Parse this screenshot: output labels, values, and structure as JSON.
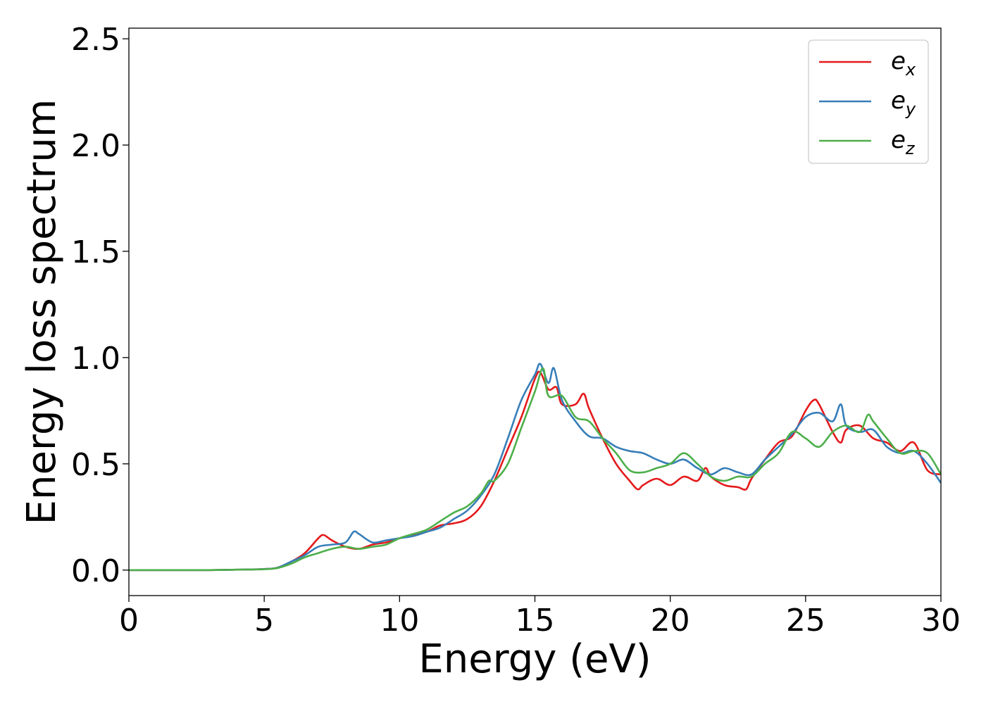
{
  "chart_data": {
    "type": "line",
    "xlabel": "Energy (eV)",
    "ylabel": "Energy loss spectrum",
    "xlim": [
      0,
      30
    ],
    "ylim": [
      -0.12,
      2.55
    ],
    "xticks": [
      0,
      5,
      10,
      15,
      20,
      25,
      30
    ],
    "yticks": [
      0.0,
      0.5,
      1.0,
      1.5,
      2.0,
      2.5
    ],
    "xtick_labels": [
      "0",
      "5",
      "10",
      "15",
      "20",
      "25",
      "30"
    ],
    "ytick_labels": [
      "0.0",
      "0.5",
      "1.0",
      "1.5",
      "2.0",
      "2.5"
    ],
    "grid": false,
    "legend_position": "top-right",
    "series": [
      {
        "name": "e_x",
        "label_base": "e",
        "label_sub": "x",
        "color": "#e41a1c",
        "x": [
          0,
          1,
          2,
          3,
          4,
          5,
          5.5,
          6,
          6.5,
          7,
          7.2,
          7.5,
          8,
          8.5,
          9,
          9.5,
          10,
          10.5,
          11,
          11.5,
          12,
          12.5,
          13,
          13.5,
          14,
          14.5,
          15,
          15.2,
          15.5,
          15.8,
          16,
          16.5,
          16.8,
          17,
          17.5,
          18,
          18.5,
          18.8,
          19,
          19.5,
          20,
          20.5,
          21,
          21.3,
          21.5,
          22,
          22.5,
          22.8,
          23,
          23.5,
          24,
          24.5,
          25,
          25.3,
          25.5,
          26,
          26.3,
          26.5,
          27,
          27.5,
          28,
          28.5,
          29,
          29.5,
          30
        ],
        "y": [
          0,
          0,
          0,
          0,
          0.002,
          0.005,
          0.012,
          0.04,
          0.08,
          0.15,
          0.165,
          0.14,
          0.11,
          0.1,
          0.12,
          0.13,
          0.15,
          0.165,
          0.18,
          0.21,
          0.22,
          0.24,
          0.3,
          0.42,
          0.57,
          0.72,
          0.9,
          0.93,
          0.85,
          0.86,
          0.78,
          0.78,
          0.83,
          0.76,
          0.62,
          0.5,
          0.42,
          0.38,
          0.4,
          0.43,
          0.4,
          0.44,
          0.42,
          0.48,
          0.44,
          0.4,
          0.39,
          0.38,
          0.43,
          0.52,
          0.6,
          0.63,
          0.75,
          0.8,
          0.78,
          0.65,
          0.6,
          0.66,
          0.68,
          0.62,
          0.6,
          0.56,
          0.6,
          0.47,
          0.45
        ]
      },
      {
        "name": "e_y",
        "label_base": "e",
        "label_sub": "y",
        "color": "#377eb8",
        "x": [
          0,
          1,
          2,
          3,
          4,
          5,
          5.5,
          6,
          6.5,
          7,
          7.5,
          8,
          8.3,
          8.5,
          9,
          9.5,
          10,
          10.5,
          11,
          11.5,
          12,
          12.5,
          13,
          13.5,
          14,
          14.5,
          15,
          15.2,
          15.5,
          15.7,
          16,
          16.5,
          17,
          17.5,
          18,
          18.5,
          19,
          19.5,
          20,
          20.5,
          21,
          21.5,
          22,
          22.5,
          23,
          23.5,
          24,
          24.5,
          25,
          25.5,
          26,
          26.3,
          26.5,
          27,
          27.5,
          28,
          28.5,
          29,
          29.5,
          30
        ],
        "y": [
          0,
          0,
          0,
          0,
          0.002,
          0.005,
          0.012,
          0.04,
          0.07,
          0.11,
          0.12,
          0.13,
          0.18,
          0.17,
          0.13,
          0.14,
          0.15,
          0.16,
          0.18,
          0.2,
          0.24,
          0.28,
          0.35,
          0.45,
          0.62,
          0.8,
          0.92,
          0.97,
          0.88,
          0.95,
          0.8,
          0.7,
          0.63,
          0.62,
          0.58,
          0.56,
          0.55,
          0.52,
          0.5,
          0.52,
          0.48,
          0.45,
          0.48,
          0.46,
          0.45,
          0.52,
          0.58,
          0.64,
          0.72,
          0.74,
          0.7,
          0.78,
          0.68,
          0.65,
          0.66,
          0.58,
          0.55,
          0.56,
          0.5,
          0.41
        ]
      },
      {
        "name": "e_z",
        "label_base": "e",
        "label_sub": "z",
        "color": "#4daf4a",
        "x": [
          0,
          1,
          2,
          3,
          4,
          5,
          5.5,
          6,
          6.5,
          7,
          7.5,
          8,
          8.5,
          9,
          9.5,
          10,
          10.5,
          11,
          11.5,
          12,
          12.5,
          13,
          13.3,
          13.5,
          14,
          14.5,
          15,
          15.3,
          15.5,
          16,
          16.5,
          17,
          17.5,
          18,
          18.5,
          19,
          19.5,
          20,
          20.5,
          21,
          21.5,
          22,
          22.5,
          23,
          23.5,
          24,
          24.5,
          25,
          25.5,
          26,
          26.5,
          27,
          27.3,
          27.5,
          28,
          28.5,
          29,
          29.5,
          30
        ],
        "y": [
          0,
          0,
          0,
          0,
          0.002,
          0.004,
          0.01,
          0.03,
          0.06,
          0.08,
          0.1,
          0.11,
          0.1,
          0.11,
          0.12,
          0.15,
          0.17,
          0.19,
          0.23,
          0.27,
          0.3,
          0.36,
          0.42,
          0.42,
          0.5,
          0.67,
          0.84,
          0.95,
          0.82,
          0.82,
          0.72,
          0.7,
          0.62,
          0.55,
          0.47,
          0.46,
          0.48,
          0.5,
          0.55,
          0.5,
          0.44,
          0.42,
          0.44,
          0.44,
          0.5,
          0.55,
          0.65,
          0.62,
          0.58,
          0.65,
          0.68,
          0.65,
          0.73,
          0.7,
          0.62,
          0.55,
          0.56,
          0.55,
          0.45
        ]
      }
    ]
  }
}
